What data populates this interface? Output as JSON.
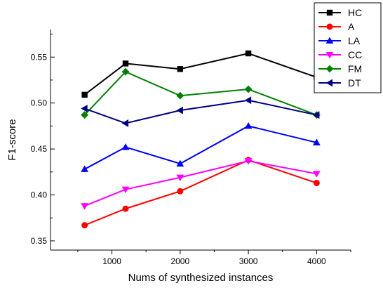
{
  "chart_data": {
    "type": "line",
    "title": "",
    "xlabel": "Nums of synthesized instances",
    "ylabel": "F1-score",
    "x": [
      600,
      1200,
      2000,
      3000,
      4000
    ],
    "xlim": [
      100,
      4500
    ],
    "ylim": [
      0.34,
      0.58
    ],
    "x_ticks": [
      1000,
      2000,
      3000,
      4000
    ],
    "y_ticks": [
      0.35,
      0.4,
      0.45,
      0.5,
      0.55
    ],
    "x_tick_labels": [
      "1000",
      "2000",
      "3000",
      "4000"
    ],
    "y_tick_labels": [
      "0.35",
      "0.40",
      "0.45",
      "0.50",
      "0.55"
    ],
    "grid": false,
    "legend_position": "top-right",
    "series": [
      {
        "name": "HC",
        "color": "#000000",
        "marker": "square",
        "values": [
          0.509,
          0.543,
          0.537,
          0.554,
          0.528
        ]
      },
      {
        "name": "A",
        "color": "#ff0000",
        "marker": "circle",
        "values": [
          0.367,
          0.385,
          0.404,
          0.438,
          0.413
        ]
      },
      {
        "name": "LA",
        "color": "#0000ff",
        "marker": "triangle-up",
        "values": [
          0.428,
          0.452,
          0.434,
          0.475,
          0.457
        ]
      },
      {
        "name": "CC",
        "color": "#ff00ff",
        "marker": "triangle-down",
        "values": [
          0.388,
          0.406,
          0.419,
          0.437,
          0.423
        ]
      },
      {
        "name": "FM",
        "color": "#008000",
        "marker": "diamond",
        "values": [
          0.487,
          0.534,
          0.508,
          0.515,
          0.487
        ]
      },
      {
        "name": "DT",
        "color": "#000080",
        "marker": "triangle-left",
        "values": [
          0.494,
          0.478,
          0.492,
          0.503,
          0.487
        ]
      }
    ]
  }
}
